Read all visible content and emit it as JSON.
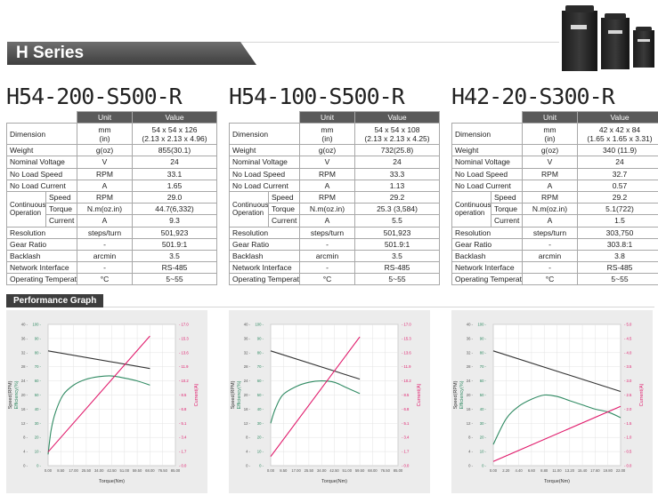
{
  "header": {
    "series_title": "H Series",
    "photo_icon": "servo-motors-photo"
  },
  "spec_headers": {
    "unit": "Unit",
    "value": "Value"
  },
  "products": [
    {
      "name": "H54-200-S500-R",
      "rows": {
        "dimension": {
          "label": "Dimension",
          "unit1": "mm",
          "unit2": "(in)",
          "value1": "54 x 54 x 126",
          "value2": "(2.13 x 2.13 x 4.96)"
        },
        "weight": {
          "label": "Weight",
          "unit": "g(oz)",
          "value": "855(30.1)"
        },
        "nominal_voltage": {
          "label": "Nominal Voltage",
          "unit": "V",
          "value": "24"
        },
        "no_load_speed": {
          "label": "No Load Speed",
          "unit": "RPM",
          "value": "33.1"
        },
        "no_load_current": {
          "label": "No Load Current",
          "unit": "A",
          "value": "1.65"
        },
        "continuous": {
          "label": "Continuous Operation",
          "speed": {
            "label": "Speed",
            "unit": "RPM",
            "value": "29.0"
          },
          "torque": {
            "label": "Torque",
            "unit": "N.m(oz.in)",
            "value": "44.7(6,332)"
          },
          "current": {
            "label": "Current",
            "unit": "A",
            "value": "9.3"
          }
        },
        "resolution": {
          "label": "Resolution",
          "unit": "steps/turn",
          "value": "501,923"
        },
        "gear_ratio": {
          "label": "Gear Ratio",
          "unit": "-",
          "value": "501.9:1"
        },
        "backlash": {
          "label": "Backlash",
          "unit": "arcmin",
          "value": "3.5"
        },
        "network": {
          "label": "Network Interface",
          "unit": "-",
          "value": "RS-485"
        },
        "temperature": {
          "label": "Operating Temperature",
          "unit": "°C",
          "value": "5~55"
        }
      }
    },
    {
      "name": "H54-100-S500-R",
      "rows": {
        "dimension": {
          "label": "Dimension",
          "unit1": "mm",
          "unit2": "(in)",
          "value1": "54 x 54 x 108",
          "value2": "(2.13 x 2.13 x 4.25)"
        },
        "weight": {
          "label": "Weight",
          "unit": "g(oz)",
          "value": "732(25.8)"
        },
        "nominal_voltage": {
          "label": "Nominal Voltage",
          "unit": "V",
          "value": "24"
        },
        "no_load_speed": {
          "label": "No Load Speed",
          "unit": "RPM",
          "value": "33.3"
        },
        "no_load_current": {
          "label": "No Load Current",
          "unit": "A",
          "value": "1.13"
        },
        "continuous": {
          "label": "Continuous Operation",
          "speed": {
            "label": "Speed",
            "unit": "RPM",
            "value": "29.2"
          },
          "torque": {
            "label": "Torque",
            "unit": "N.m(oz.in)",
            "value": "25.3 (3,584)"
          },
          "current": {
            "label": "Current",
            "unit": "A",
            "value": "5.5"
          }
        },
        "resolution": {
          "label": "Resolution",
          "unit": "steps/turn",
          "value": "501,923"
        },
        "gear_ratio": {
          "label": "Gear Ratio",
          "unit": "-",
          "value": "501.9:1"
        },
        "backlash": {
          "label": "Backlash",
          "unit": "arcmin",
          "value": "3.5"
        },
        "network": {
          "label": "Network Interface",
          "unit": "-",
          "value": "RS-485"
        },
        "temperature": {
          "label": "Operating Temperature",
          "unit": "°C",
          "value": "5~55"
        }
      }
    },
    {
      "name": "H42-20-S300-R",
      "rows": {
        "dimension": {
          "label": "Dimension",
          "unit1": "mm",
          "unit2": "(in)",
          "value1": "42 x 42 x 84",
          "value2": "(1.65 x 1.65 x 3.31)"
        },
        "weight": {
          "label": "Weight",
          "unit": "g(oz)",
          "value": "340 (11.9)"
        },
        "nominal_voltage": {
          "label": "Nominal Voltage",
          "unit": "V",
          "value": "24"
        },
        "no_load_speed": {
          "label": "No Load Speed",
          "unit": "RPM",
          "value": "32.7"
        },
        "no_load_current": {
          "label": "No Load Current",
          "unit": "A",
          "value": "0.57"
        },
        "continuous": {
          "label": "Continuous operation",
          "speed": {
            "label": "Speed",
            "unit": "RPM",
            "value": "29.2"
          },
          "torque": {
            "label": "Torque",
            "unit": "N.m(oz.in)",
            "value": "5.1(722)"
          },
          "current": {
            "label": "Current",
            "unit": "A",
            "value": "1.5"
          }
        },
        "resolution": {
          "label": "Resolution",
          "unit": "steps/turn",
          "value": "303,750"
        },
        "gear_ratio": {
          "label": "Gear Ratio",
          "unit": "-",
          "value": "303.8:1"
        },
        "backlash": {
          "label": "Backlash",
          "unit": "arcmin",
          "value": "3.8"
        },
        "network": {
          "label": "Network Interface",
          "unit": "-",
          "value": "RS-485"
        },
        "temperature": {
          "label": "Operating Temperature",
          "unit": "°C",
          "value": "5~55"
        }
      }
    }
  ],
  "performance": {
    "section_title": "Performance Graph",
    "colors": {
      "speed": "#333333",
      "efficiency": "#2f8a62",
      "current": "#e0186a"
    }
  },
  "chart_data": [
    {
      "type": "line",
      "xlabel": "Torque(Nm)",
      "ylabel_speed": "Speed(RPM)",
      "ylabel_efficiency": "Efficiency(%)",
      "ylabel_current": "Current(A)",
      "x_ticks": [
        "0.00",
        "8.50",
        "17.00",
        "25.50",
        "34.00",
        "42.50",
        "51.00",
        "59.50",
        "68.00",
        "76.50",
        "85.00"
      ],
      "speed_ticks": [
        "0",
        "4",
        "8",
        "12",
        "16",
        "20",
        "24",
        "28",
        "32",
        "36",
        "40"
      ],
      "efficiency_ticks": [
        "0",
        "10",
        "20",
        "30",
        "40",
        "50",
        "60",
        "70",
        "80",
        "90",
        "100"
      ],
      "current_ticks": [
        "0.0",
        "1.7",
        "3.4",
        "5.1",
        "6.8",
        "8.5",
        "10.2",
        "11.9",
        "13.6",
        "15.3",
        "17.0"
      ],
      "xlim": [
        0,
        85
      ],
      "speed_lim": [
        0,
        40
      ],
      "efficiency_lim": [
        0,
        100
      ],
      "current_lim": [
        0,
        17
      ],
      "series": [
        {
          "name": "Speed",
          "axis": "speed",
          "points": [
            [
              0,
              32.5
            ],
            [
              68,
              27.5
            ]
          ]
        },
        {
          "name": "Efficiency",
          "axis": "efficiency",
          "points": [
            [
              0,
              8
            ],
            [
              2,
              25
            ],
            [
              5,
              38
            ],
            [
              10,
              50
            ],
            [
              17,
              57
            ],
            [
              25,
              61
            ],
            [
              34,
              63
            ],
            [
              42.5,
              63.5
            ],
            [
              51,
              62
            ],
            [
              59.5,
              60
            ],
            [
              68,
              57
            ]
          ]
        },
        {
          "name": "Current",
          "axis": "current",
          "points": [
            [
              0,
              1.65
            ],
            [
              68,
              15.6
            ]
          ]
        }
      ]
    },
    {
      "type": "line",
      "xlabel": "Torque(Nm)",
      "ylabel_speed": "Speed(RPM)",
      "ylabel_efficiency": "Efficiency(%)",
      "ylabel_current": "Current(A)",
      "x_ticks": [
        "0.00",
        "8.50",
        "17.00",
        "25.50",
        "34.00",
        "42.50",
        "51.00",
        "59.50",
        "68.00",
        "76.50",
        "85.00"
      ],
      "speed_ticks": [
        "0",
        "4",
        "8",
        "12",
        "16",
        "20",
        "24",
        "28",
        "32",
        "36",
        "40"
      ],
      "efficiency_ticks": [
        "0",
        "10",
        "20",
        "30",
        "40",
        "50",
        "60",
        "70",
        "80",
        "90",
        "100"
      ],
      "current_ticks": [
        "0.0",
        "1.7",
        "3.4",
        "5.1",
        "6.8",
        "8.5",
        "10.2",
        "11.9",
        "13.6",
        "15.3",
        "17.0"
      ],
      "xlim": [
        0,
        85
      ],
      "speed_lim": [
        0,
        40
      ],
      "efficiency_lim": [
        0,
        100
      ],
      "current_lim": [
        0,
        17
      ],
      "series": [
        {
          "name": "Speed",
          "axis": "speed",
          "points": [
            [
              0,
              32.5
            ],
            [
              59.5,
              24.5
            ]
          ]
        },
        {
          "name": "Efficiency",
          "axis": "efficiency",
          "points": [
            [
              0,
              30
            ],
            [
              3,
              40
            ],
            [
              8,
              50
            ],
            [
              17,
              56
            ],
            [
              25.5,
              59
            ],
            [
              34,
              60
            ],
            [
              42.5,
              59
            ],
            [
              51,
              55
            ],
            [
              59.5,
              51
            ]
          ]
        },
        {
          "name": "Current",
          "axis": "current",
          "points": [
            [
              0,
              1.1
            ],
            [
              59.5,
              15.5
            ]
          ]
        }
      ]
    },
    {
      "type": "line",
      "xlabel": "Torque(Nm)",
      "ylabel_speed": "Speed(RPM)",
      "ylabel_efficiency": "Efficiency(%)",
      "ylabel_current": "Current(A)",
      "x_ticks": [
        "0.00",
        "2.20",
        "4.40",
        "6.60",
        "8.80",
        "11.00",
        "13.20",
        "15.40",
        "17.60",
        "19.80",
        "22.00"
      ],
      "speed_ticks": [
        "0",
        "4",
        "8",
        "12",
        "16",
        "20",
        "24",
        "28",
        "32",
        "36",
        "40"
      ],
      "efficiency_ticks": [
        "0",
        "10",
        "20",
        "30",
        "40",
        "50",
        "60",
        "70",
        "80",
        "90",
        "100"
      ],
      "current_ticks": [
        "0.0",
        "0.5",
        "1.0",
        "1.5",
        "2.0",
        "2.5",
        "3.0",
        "3.5",
        "4.0",
        "4.5",
        "5.0"
      ],
      "xlim": [
        0,
        22
      ],
      "speed_lim": [
        0,
        40
      ],
      "efficiency_lim": [
        0,
        100
      ],
      "current_lim": [
        0,
        5
      ],
      "series": [
        {
          "name": "Speed",
          "axis": "speed",
          "points": [
            [
              0,
              32.5
            ],
            [
              22,
              21
            ]
          ]
        },
        {
          "name": "Efficiency",
          "axis": "efficiency",
          "points": [
            [
              0,
              15
            ],
            [
              2.2,
              33
            ],
            [
              4.4,
              42
            ],
            [
              6.6,
              47
            ],
            [
              8.8,
              50
            ],
            [
              11,
              49
            ],
            [
              13.2,
              46
            ],
            [
              15.4,
              43
            ],
            [
              17.6,
              40
            ],
            [
              19.8,
              38
            ],
            [
              22,
              34
            ]
          ]
        },
        {
          "name": "Current",
          "axis": "current",
          "points": [
            [
              0,
              0.15
            ],
            [
              22,
              2.1
            ]
          ]
        }
      ]
    }
  ]
}
